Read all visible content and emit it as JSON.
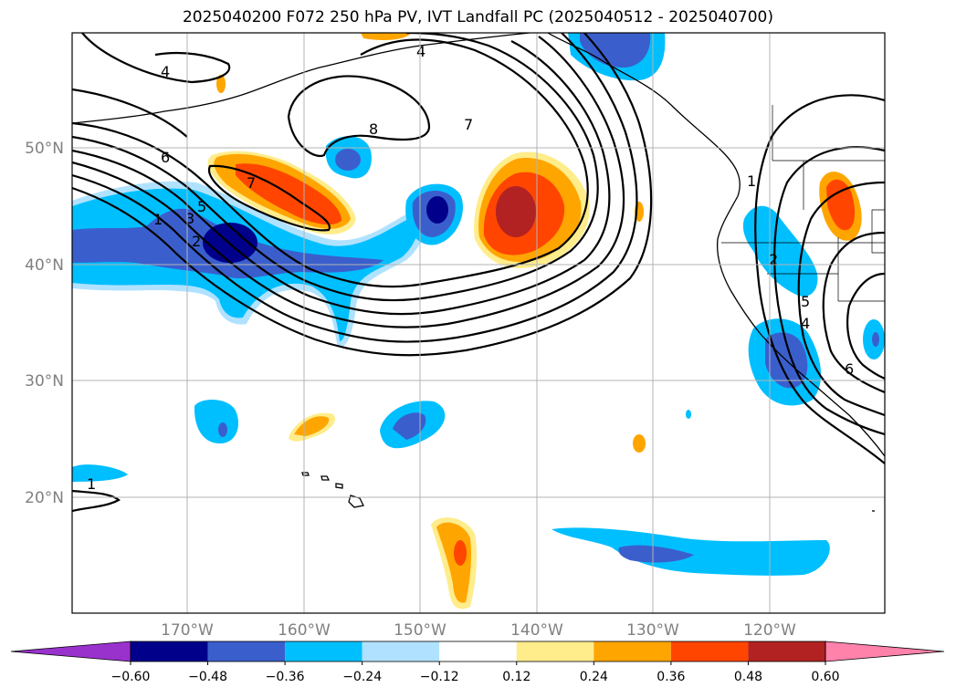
{
  "title": "2025040200 F072 250 hPa PV, IVT Landfall PC (2025040512 - 2025040700)",
  "lat_ticks": [
    "50°N",
    "40°N",
    "30°N",
    "20°N"
  ],
  "lon_ticks": [
    "170°W",
    "160°W",
    "150°W",
    "140°W",
    "130°W",
    "120°W"
  ],
  "colorbar": {
    "levels": [
      "−0.60",
      "−0.48",
      "−0.36",
      "−0.24",
      "−0.12",
      "0.12",
      "0.24",
      "0.36",
      "0.48",
      "0.60"
    ],
    "colors": [
      "#9932cc",
      "#00008b",
      "#3a5fcd",
      "#00bfff",
      "#b0e2ff",
      "#ffffff",
      "#ffec8b",
      "#ffa500",
      "#ff4500",
      "#b22222",
      "#ff82ab"
    ]
  },
  "contour_labels": [
    "4",
    "4",
    "8",
    "7",
    "6",
    "7",
    "5",
    "3",
    "2",
    "1",
    "1",
    "2",
    "5",
    "4",
    "6",
    "1"
  ]
}
